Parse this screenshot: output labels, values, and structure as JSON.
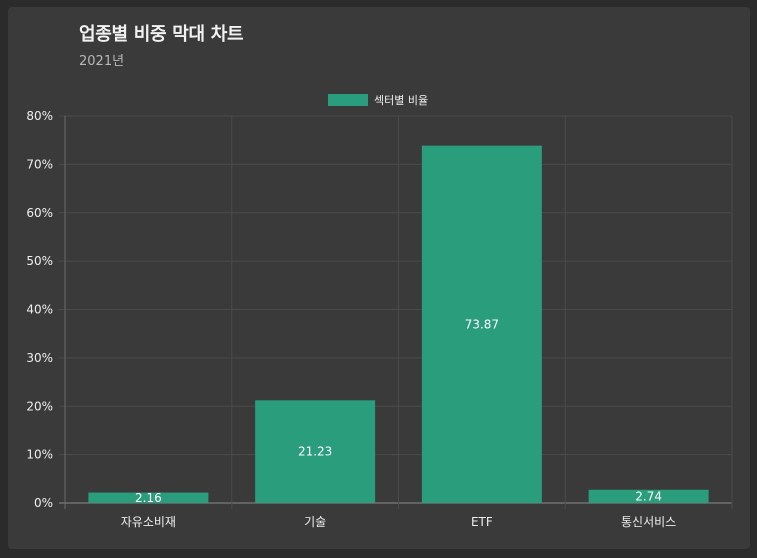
{
  "header": {
    "title": "업종별 비중 막대 차트",
    "subtitle": "2021년"
  },
  "chart_data": {
    "type": "bar",
    "title": "업종별 비중 막대 차트",
    "subtitle": "2021년",
    "categories": [
      "자유소비재",
      "기술",
      "ETF",
      "통신서비스"
    ],
    "series": [
      {
        "name": "섹터별 비율",
        "values": [
          2.16,
          21.23,
          73.87,
          2.74
        ],
        "color": "#2a9d7c"
      }
    ],
    "ylim": [
      0,
      80
    ],
    "yticks": [
      0,
      10,
      20,
      30,
      40,
      50,
      60,
      70,
      80
    ],
    "ytick_labels": [
      "0%",
      "10%",
      "20%",
      "30%",
      "40%",
      "50%",
      "60%",
      "70%",
      "80%"
    ],
    "grid": true,
    "legend": "top-center",
    "data_labels": [
      "2.16",
      "21.23",
      "73.87",
      "2.74"
    ]
  }
}
